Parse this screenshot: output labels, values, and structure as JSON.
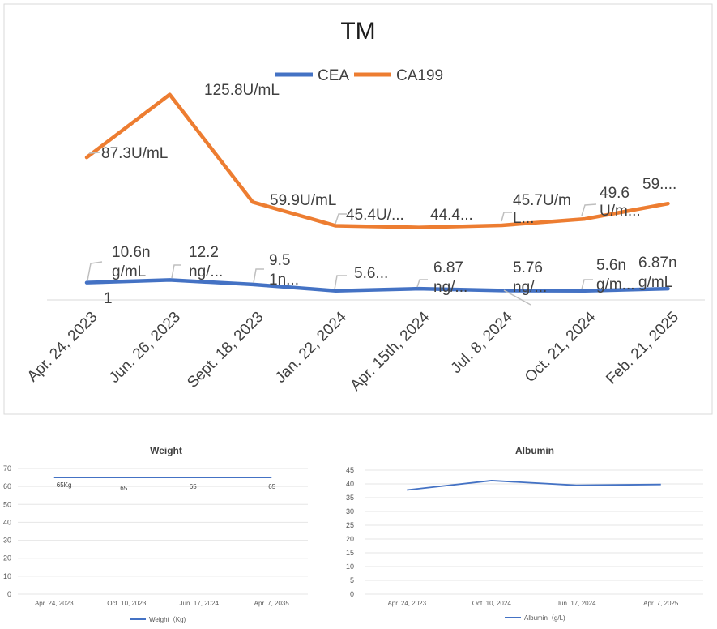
{
  "chart_data": [
    {
      "type": "line",
      "title": "TM",
      "categories": [
        "Apr. 24, 2023",
        "Jun. 26, 2023",
        "Sept. 18, 2023",
        "Jan. 22, 2024",
        "Apr. 15th, 2024",
        "Jul. 8, 2024",
        "Oct. 21, 2024",
        "Feb. 21, 2025"
      ],
      "series": [
        {
          "name": "CEA",
          "color": "#4472C4",
          "values": [
            10.61,
            12.2,
            9.5,
            5.6,
            6.87,
            5.76,
            5.6,
            6.87
          ],
          "labels": [
            "10.6n g/mL",
            "12.2 ng/...",
            "9.5 1n...",
            "5.6...",
            "6.87 ng/...",
            "5.76 ng/...",
            "5.6n g/m...",
            "6.87n g/mL"
          ]
        },
        {
          "name": "CA199",
          "color": "#ED7D31",
          "values": [
            87.3,
            125.8,
            59.9,
            45.4,
            44.4,
            45.7,
            49.6,
            59
          ],
          "labels": [
            "87.3U/mL",
            "125.8U/mL",
            "59.9U/mL",
            "45.4U/...",
            "44.4...",
            "45.7U/m L...",
            "49.6 U/m...",
            "59...."
          ]
        }
      ],
      "stray_label": "1",
      "ylim": [
        0,
        140
      ],
      "legend": "top"
    },
    {
      "type": "line",
      "title": "Weight",
      "categories": [
        "Apr. 24, 2023",
        "Oct. 10, 2023",
        "Jun. 17, 2024",
        "Apr. 7, 2035"
      ],
      "series": [
        {
          "name": "Weight（Kg)",
          "color": "#4472C4",
          "values": [
            65,
            65,
            65,
            65
          ],
          "labels": [
            "65Kg",
            "65",
            "65",
            "65"
          ]
        }
      ],
      "yticks": [
        "0",
        "10",
        "20",
        "30",
        "40",
        "50",
        "60",
        "70"
      ],
      "ylim": [
        0,
        70
      ],
      "legend": "bottom"
    },
    {
      "type": "line",
      "title": "Albumin",
      "categories": [
        "Apr. 24, 2023",
        "Oct. 10, 2024",
        "Jun. 17, 2024",
        "Apr. 7, 2025"
      ],
      "series": [
        {
          "name": "Albumin（g/L)",
          "color": "#4472C4",
          "values": [
            37.8,
            41.2,
            39.5,
            39.8
          ]
        }
      ],
      "yticks": [
        "0",
        "5",
        "10",
        "15",
        "20",
        "25",
        "30",
        "35",
        "40",
        "45"
      ],
      "ylim": [
        0,
        45
      ],
      "legend": "bottom"
    }
  ]
}
